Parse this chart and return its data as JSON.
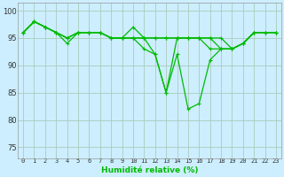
{
  "xlabel": "Humidité relative (%)",
  "background_color": "#cceeff",
  "grid_color": "#aaccbb",
  "line_color": "#00bb00",
  "xlim": [
    -0.5,
    23.5
  ],
  "ylim": [
    73,
    101.5
  ],
  "yticks": [
    75,
    80,
    85,
    90,
    95,
    100
  ],
  "xtick_labels": [
    "0",
    "1",
    "2",
    "3",
    "4",
    "5",
    "6",
    "7",
    "8",
    "9",
    "10",
    "11",
    "12",
    "13",
    "14",
    "15",
    "16",
    "17",
    "18",
    "19",
    "20",
    "21",
    "22",
    "23"
  ],
  "line1": [
    96,
    98,
    97,
    96,
    95,
    96,
    96,
    96,
    95,
    95,
    97,
    95,
    92,
    85,
    95,
    95,
    95,
    93,
    93,
    93,
    94,
    96,
    96,
    96
  ],
  "line2": [
    96,
    98,
    97,
    96,
    94,
    96,
    96,
    96,
    95,
    95,
    95,
    93,
    92,
    85,
    92,
    82,
    83,
    91,
    93,
    93,
    94,
    96,
    96,
    96
  ],
  "line3": [
    96,
    98,
    97,
    96,
    95,
    96,
    96,
    96,
    95,
    95,
    95,
    95,
    95,
    95,
    95,
    95,
    95,
    95,
    93,
    93,
    94,
    96,
    96,
    96
  ],
  "line4": [
    96,
    98,
    97,
    96,
    95,
    96,
    96,
    96,
    95,
    95,
    95,
    95,
    95,
    95,
    95,
    95,
    95,
    95,
    95,
    93,
    94,
    96,
    96,
    96
  ]
}
